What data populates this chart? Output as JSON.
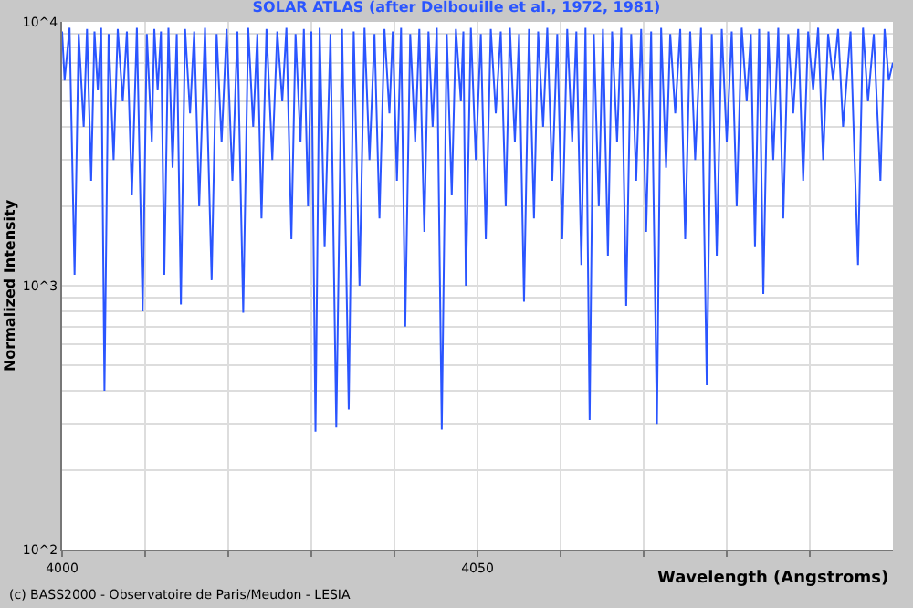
{
  "chart_data": {
    "type": "line",
    "title": "SOLAR ATLAS (after Delbouille et al., 1972, 1981)",
    "xlabel": "Wavelength (Angstroms)",
    "ylabel": "Normalized Intensity",
    "annotations": [
      "(c) BASS2000 - Observatoire de Paris/Meudon - LESIA"
    ],
    "x": [
      4000.0,
      4000.3,
      4000.9,
      4001.5,
      4002.0,
      4002.6,
      4003.0,
      4003.5,
      4003.9,
      4004.3,
      4004.7,
      4005.1,
      4005.6,
      4006.2,
      4006.7,
      4007.3,
      4007.8,
      4008.4,
      4009.0,
      4009.7,
      4010.2,
      4010.8,
      4011.1,
      4011.5,
      4011.9,
      4012.3,
      4012.8,
      4013.3,
      4013.8,
      4014.3,
      4014.8,
      4015.4,
      4015.9,
      4016.5,
      4017.2,
      4018.0,
      4018.6,
      4019.2,
      4019.8,
      4020.5,
      4021.1,
      4021.8,
      4022.4,
      4023.0,
      4023.5,
      4024.0,
      4024.6,
      4025.3,
      4025.9,
      4026.5,
      4027.0,
      4027.6,
      4028.1,
      4028.7,
      4029.1,
      4029.6,
      4030.0,
      4030.5,
      4031.0,
      4031.6,
      4032.3,
      4033.0,
      4033.7,
      4034.5,
      4035.1,
      4035.8,
      4036.4,
      4037.0,
      4037.6,
      4038.2,
      4038.8,
      4039.4,
      4039.8,
      4040.3,
      4040.8,
      4041.3,
      4041.9,
      4042.5,
      4043.0,
      4043.6,
      4044.1,
      4044.6,
      4045.1,
      4045.7,
      4046.3,
      4046.9,
      4047.4,
      4048.0,
      4048.3,
      4048.6,
      4049.2,
      4049.8,
      4050.4,
      4051.0,
      4051.6,
      4052.2,
      4052.8,
      4053.4,
      4053.9,
      4054.5,
      4055.0,
      4055.6,
      4056.2,
      4056.8,
      4057.3,
      4057.9,
      4058.4,
      4059.0,
      4059.6,
      4060.2,
      4060.8,
      4061.4,
      4061.9,
      4062.5,
      4063.0,
      4063.5,
      4064.0,
      4064.6,
      4065.1,
      4065.7,
      4066.2,
      4066.8,
      4067.3,
      4067.9,
      4068.5,
      4069.1,
      4069.7,
      4070.3,
      4070.9,
      4071.6,
      4072.1,
      4072.7,
      4073.2,
      4073.8,
      4074.4,
      4075.0,
      4075.6,
      4076.2,
      4076.9,
      4077.6,
      4078.2,
      4078.8,
      4079.4,
      4080.0,
      4080.6,
      4081.2,
      4081.8,
      4082.4,
      4082.9,
      4083.4,
      4083.9,
      4084.4,
      4085.0,
      4085.6,
      4086.2,
      4086.8,
      4087.4,
      4088.0,
      4088.6,
      4089.2,
      4089.8,
      4090.4,
      4091.0,
      4091.6,
      4092.2,
      4092.8,
      4093.4,
      4094.0,
      4094.9,
      4095.8,
      4096.4,
      4097.0,
      4097.7,
      4098.5,
      4099.0,
      4099.5,
      4100.0
    ],
    "series": [
      {
        "color": "#2a55ff",
        "values": [
          9200,
          6000,
          9500,
          1100,
          9000,
          4000,
          9400,
          2500,
          9200,
          5500,
          9500,
          400,
          9000,
          3000,
          9400,
          5000,
          9200,
          2200,
          9500,
          800,
          9000,
          3500,
          9400,
          5500,
          9200,
          1100,
          9500,
          2800,
          9000,
          850,
          9400,
          4500,
          9200,
          2000,
          9500,
          1050,
          9000,
          3500,
          9400,
          2500,
          9200,
          790,
          9500,
          4000,
          9000,
          1800,
          9400,
          3000,
          9200,
          5000,
          9500,
          1500,
          9000,
          3500,
          9400,
          2000,
          9200,
          280,
          9500,
          1400,
          9000,
          290,
          9400,
          340,
          9200,
          1000,
          9500,
          3000,
          9000,
          1800,
          9400,
          4500,
          9200,
          2500,
          9500,
          700,
          9000,
          3500,
          9400,
          1600,
          9200,
          4000,
          9500,
          285,
          9000,
          2200,
          9400,
          5000,
          9200,
          1000,
          9500,
          3000,
          9000,
          1500,
          9400,
          4500,
          9200,
          2000,
          9500,
          3500,
          9000,
          870,
          9400,
          1800,
          9200,
          4000,
          9500,
          2500,
          9000,
          1500,
          9400,
          3500,
          9200,
          1200,
          9500,
          310,
          9000,
          2000,
          9400,
          1300,
          9200,
          3500,
          9500,
          840,
          9000,
          2500,
          9400,
          1600,
          9200,
          300,
          9500,
          2800,
          9000,
          4500,
          9400,
          1500,
          9200,
          3000,
          9500,
          420,
          9000,
          1300,
          9400,
          3500,
          9200,
          2000,
          9500,
          5000,
          9000,
          1400,
          9400,
          930,
          9200,
          3000,
          9500,
          1800,
          9000,
          4500,
          9400,
          2500,
          9200,
          5500,
          9500,
          3000,
          9000,
          6000,
          9400,
          4000,
          9200,
          1200,
          9500,
          5000,
          9000,
          2500,
          9400,
          6000,
          7000
        ]
      }
    ],
    "log": true,
    "grid": true,
    "xlim": [
      4000,
      4100
    ],
    "xticks": [
      4000,
      {
        "value": 4010,
        "label": null
      },
      {
        "value": 4020,
        "label": null
      },
      {
        "value": 4030,
        "label": null
      },
      {
        "value": 4040,
        "label": null
      },
      4050,
      {
        "value": 4060,
        "label": null
      },
      {
        "value": 4070,
        "label": null
      },
      {
        "value": 4080,
        "label": null
      },
      {
        "value": 4090,
        "label": null
      }
    ],
    "ylim": [
      100,
      10000
    ],
    "yticks": [
      {
        "value": 100,
        "label": "10^2"
      },
      {
        "value": 200,
        "label": null
      },
      {
        "value": 300,
        "label": null
      },
      {
        "value": 400,
        "label": null
      },
      {
        "value": 500,
        "label": null
      },
      {
        "value": 600,
        "label": null
      },
      {
        "value": 700,
        "label": null
      },
      {
        "value": 800,
        "label": null
      },
      {
        "value": 900,
        "label": null
      },
      {
        "value": 1000,
        "label": "10^3"
      },
      {
        "value": 2000,
        "label": null
      },
      {
        "value": 3000,
        "label": null
      },
      {
        "value": 4000,
        "label": null
      },
      {
        "value": 5000,
        "label": null
      },
      {
        "value": 6000,
        "label": null
      },
      {
        "value": 7000,
        "label": null
      },
      {
        "value": 8000,
        "label": null
      },
      {
        "value": 9000,
        "label": null
      },
      {
        "value": 10000,
        "label": "10^4"
      }
    ]
  }
}
